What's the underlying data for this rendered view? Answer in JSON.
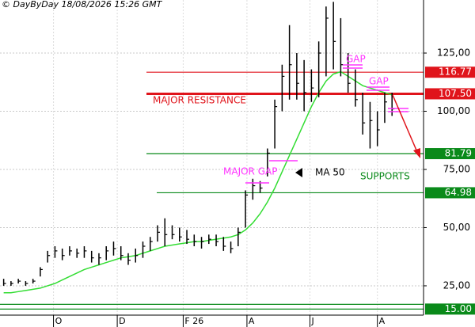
{
  "chart_data": {
    "type": "ohlc",
    "header": "© DayByDay 18/08/2026  15:26 GMT",
    "x": [
      0,
      1,
      2,
      3,
      4,
      5,
      6,
      7,
      8,
      9,
      10,
      11,
      12,
      13,
      14,
      15,
      16,
      17,
      18,
      19,
      20,
      21,
      22,
      23,
      24,
      25,
      26,
      27,
      28,
      29,
      30,
      31,
      32,
      33,
      34,
      35,
      36,
      37,
      38,
      39,
      40,
      41,
      42,
      43,
      44,
      45,
      46,
      47,
      48,
      49,
      50,
      51,
      52,
      53
    ],
    "high": [
      28,
      27,
      28,
      27,
      28,
      33,
      40,
      42,
      41,
      42,
      41,
      42,
      40,
      39,
      42,
      44,
      42,
      39,
      41,
      44,
      46,
      51,
      54,
      51,
      50,
      49,
      47,
      46,
      47,
      47,
      46,
      44,
      50,
      66,
      71,
      70,
      84,
      105,
      120,
      137,
      125,
      122,
      118,
      130,
      145,
      147,
      140,
      125,
      118,
      108,
      104,
      100,
      108,
      108
    ],
    "low": [
      25,
      25,
      26,
      25,
      26,
      29,
      35,
      37,
      36,
      38,
      37,
      37,
      35,
      34,
      36,
      38,
      36,
      34,
      35,
      37,
      40,
      44,
      42,
      45,
      44,
      43,
      42,
      41,
      43,
      42,
      40,
      39,
      42,
      50,
      62,
      65,
      72,
      84,
      100,
      105,
      105,
      100,
      104,
      106,
      115,
      118,
      115,
      108,
      102,
      90,
      84,
      85,
      95,
      98
    ],
    "close": [
      26,
      26,
      27,
      26,
      27,
      32,
      38,
      40,
      38,
      40,
      39,
      40,
      37,
      37,
      40,
      41,
      38,
      36,
      38,
      42,
      44,
      48,
      47,
      47,
      46,
      45,
      44,
      44,
      45,
      44,
      42,
      41,
      48,
      64,
      68,
      67,
      82,
      102,
      115,
      120,
      112,
      108,
      110,
      125,
      140,
      130,
      120,
      112,
      105,
      95,
      96,
      92,
      104,
      101
    ],
    "ma": {
      "name": "MA 50",
      "color": "#33dd33",
      "values": [
        22,
        22,
        22.5,
        23,
        23.5,
        24,
        25,
        26,
        27.5,
        29,
        30.5,
        32,
        33,
        34,
        35,
        36,
        37,
        37.5,
        38,
        39,
        40,
        41,
        42,
        42.5,
        43,
        43.5,
        44,
        44,
        44.5,
        45,
        45.5,
        46,
        47,
        49,
        52,
        56,
        61,
        67,
        74,
        81,
        88,
        95,
        102,
        108,
        113,
        116,
        117,
        115,
        113,
        111,
        110,
        109,
        108,
        107
      ]
    },
    "levels": [
      {
        "value": 116.77,
        "color": "#e0141b"
      },
      {
        "value": {
          "value": 107.5,
          "label": "107.50"
        },
        "color": "#e0141b"
      },
      {
        "value": 81.79,
        "color": "#0a8a1a"
      },
      {
        "value": 64.98,
        "color": "#0a8a1a"
      },
      {
        "value": {
          "value": 15,
          "label": "15.00"
        },
        "color": "#0a8a1a"
      }
    ],
    "annotations": [
      "MAJOR RESISTANCE",
      "GAP",
      "GAP",
      "MAJOR GAP",
      "SUPPORTS"
    ],
    "ylim": [
      12.4,
      147.8
    ],
    "yticks": [
      {
        "value": 25,
        "label": "25,00"
      },
      {
        "value": 50,
        "label": "50,00"
      },
      {
        "value": 75,
        "label": "75,00"
      },
      {
        "value": 100,
        "label": "100,00"
      },
      {
        "value": 125,
        "label": "125,00"
      }
    ],
    "xlim": [
      -0.5,
      57.3
    ],
    "xticks": [
      {
        "value": 6.8,
        "label": "O"
      },
      {
        "value": 15.5,
        "label": "D"
      },
      {
        "value": 24.5,
        "label": "F 26"
      },
      {
        "value": 33.2,
        "label": "A"
      },
      {
        "value": 41.8,
        "label": "J"
      },
      {
        "value": 51,
        "label": "A"
      }
    ],
    "grid": true
  }
}
